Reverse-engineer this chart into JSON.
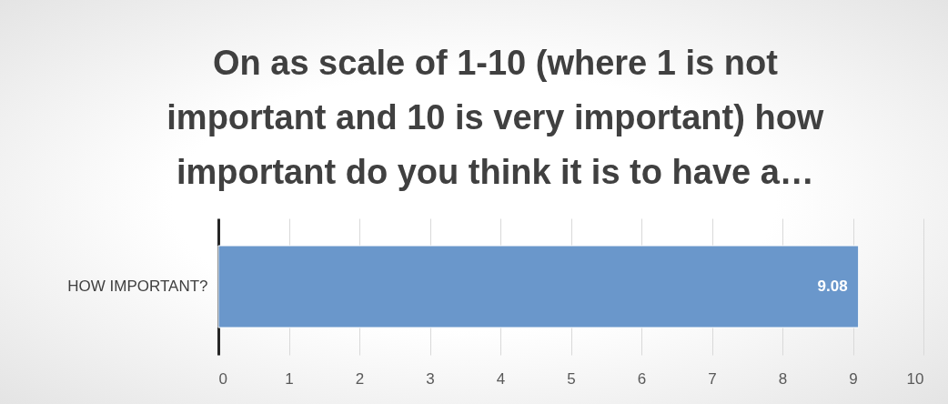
{
  "chart_data": {
    "type": "bar",
    "orientation": "horizontal",
    "title": "On as scale of 1-10 (where 1 is not important and 10 is very important) how important do you think it is to have a…",
    "categories": [
      "HOW IMPORTANT?"
    ],
    "values": [
      9.08
    ],
    "color": "#6a97cb",
    "xlim": [
      0,
      10
    ],
    "xticks": [
      0,
      1,
      2,
      3,
      4,
      5,
      6,
      7,
      8,
      9,
      10
    ],
    "grid": "x",
    "data_labels": true
  }
}
